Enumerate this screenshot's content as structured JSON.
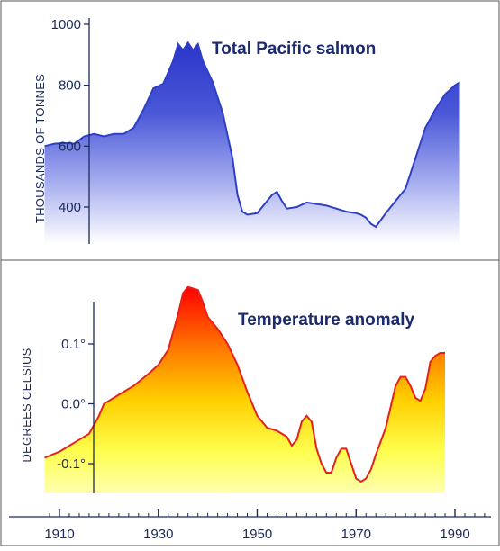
{
  "chart_data": [
    {
      "type": "area",
      "title": "Total Pacific salmon",
      "xlabel": "",
      "ylabel": "THOUSANDS OF TONNES",
      "ylim": [
        300,
        1000
      ],
      "xlim": [
        1907,
        1997
      ],
      "yticks": [
        400,
        600,
        800,
        1000
      ],
      "ytick_labels": [
        "400",
        "600",
        "800",
        "1000"
      ],
      "grid": false,
      "colors": {
        "line": "#2f3fc4",
        "fill_top": "#2a35c8",
        "fill_bottom": "#ffffff"
      },
      "series": [
        {
          "x": [
            1907,
            1909,
            1911,
            1913,
            1915,
            1917,
            1919,
            1921,
            1923,
            1925,
            1927,
            1929,
            1931,
            1933,
            1934,
            1935,
            1936,
            1937,
            1938,
            1939,
            1941,
            1943,
            1945,
            1946,
            1947,
            1948,
            1950,
            1952,
            1953,
            1954,
            1955,
            1956,
            1958,
            1960,
            1962,
            1964,
            1966,
            1968,
            1970,
            1971,
            1972,
            1973,
            1974,
            1976,
            1978,
            1980,
            1982,
            1984,
            1986,
            1988,
            1990,
            1991
          ],
          "values": [
            600,
            608,
            610,
            608,
            632,
            640,
            632,
            640,
            640,
            660,
            720,
            790,
            805,
            880,
            935,
            915,
            940,
            915,
            935,
            880,
            810,
            710,
            560,
            440,
            385,
            375,
            380,
            420,
            440,
            450,
            420,
            395,
            400,
            415,
            410,
            405,
            395,
            385,
            380,
            375,
            365,
            345,
            335,
            380,
            420,
            460,
            560,
            660,
            720,
            770,
            800,
            810
          ]
        }
      ]
    },
    {
      "type": "area",
      "title": "Temperature anomaly",
      "xlabel": "",
      "ylabel": "DEGREES CELSIUS",
      "ylim": [
        -0.17,
        0.2
      ],
      "xlim": [
        1907,
        1997
      ],
      "yticks": [
        -0.1,
        0.0,
        0.1
      ],
      "ytick_labels": [
        "-0.1°",
        "0.0°",
        "0.1°"
      ],
      "xticks": [
        1910,
        1930,
        1950,
        1970,
        1990
      ],
      "xtick_labels": [
        "1910",
        "1930",
        "1950",
        "1970",
        "1990"
      ],
      "grid": false,
      "colors": {
        "line": "#e8201a",
        "fill_top": "#ff0000",
        "fill_mid": "#ffaa00",
        "fill_bottom": "#ffff88"
      },
      "series": [
        {
          "x": [
            1907,
            1910,
            1913,
            1916,
            1918,
            1919,
            1920,
            1922,
            1925,
            1928,
            1930,
            1932,
            1934,
            1935,
            1936,
            1938,
            1939,
            1940,
            1942,
            1944,
            1946,
            1948,
            1950,
            1952,
            1954,
            1956,
            1957,
            1958,
            1959,
            1960,
            1961,
            1962,
            1963,
            1964,
            1965,
            1966,
            1967,
            1968,
            1969,
            1970,
            1971,
            1972,
            1973,
            1974,
            1976,
            1978,
            1979,
            1980,
            1981,
            1982,
            1983,
            1984,
            1985,
            1986,
            1987,
            1988
          ],
          "values": [
            -0.09,
            -0.08,
            -0.065,
            -0.05,
            -0.02,
            0.0,
            0.005,
            0.015,
            0.03,
            0.05,
            0.065,
            0.09,
            0.15,
            0.185,
            0.195,
            0.19,
            0.17,
            0.145,
            0.125,
            0.1,
            0.065,
            0.02,
            -0.02,
            -0.04,
            -0.045,
            -0.055,
            -0.07,
            -0.06,
            -0.03,
            -0.02,
            -0.03,
            -0.075,
            -0.1,
            -0.115,
            -0.115,
            -0.09,
            -0.075,
            -0.075,
            -0.1,
            -0.125,
            -0.13,
            -0.125,
            -0.11,
            -0.085,
            -0.04,
            0.03,
            0.045,
            0.045,
            0.03,
            0.01,
            0.005,
            0.025,
            0.07,
            0.08,
            0.085,
            0.085
          ]
        }
      ]
    }
  ]
}
